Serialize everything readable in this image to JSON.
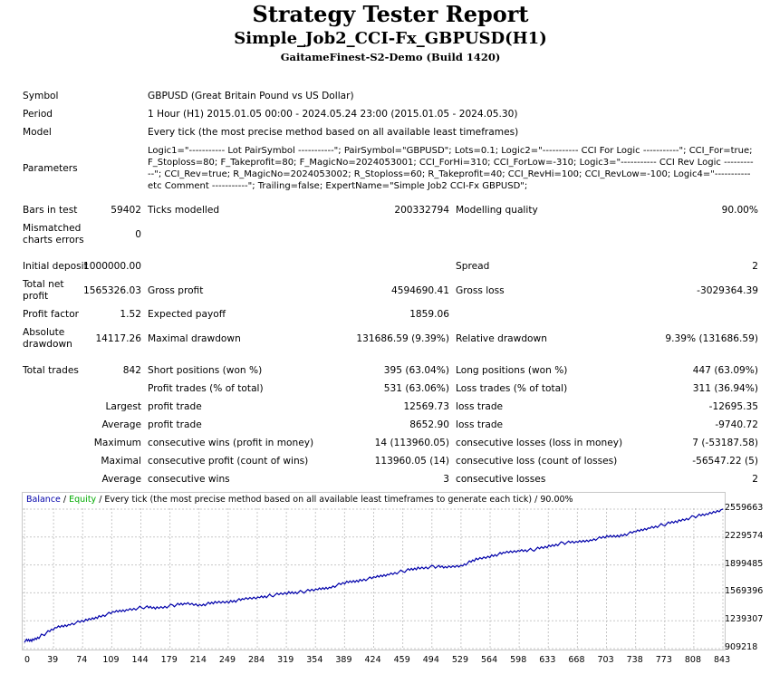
{
  "title": "Strategy Tester Report",
  "subtitle": "Simple_Job2_CCI-Fx_GBPUSD(H1)",
  "server": "GaitameFinest-S2-Demo (Build 1420)",
  "settings": {
    "symbol_label": "Symbol",
    "symbol": "GBPUSD (Great Britain Pound vs US Dollar)",
    "period_label": "Period",
    "period": "1 Hour (H1) 2015.01.05 00:00 - 2024.05.24 23:00 (2015.01.05 - 2024.05.30)",
    "model_label": "Model",
    "model": "Every tick (the most precise method based on all available least timeframes)",
    "parameters_label": "Parameters",
    "parameters": "Logic1=\"----------- Lot PairSymbol -----------\"; PairSymbol=\"GBPUSD\"; Lots=0.1; Logic2=\"----------- CCI For Logic -----------\"; CCI_For=true; F_Stoploss=80; F_Takeprofit=80; F_MagicNo=2024053001; CCI_ForHi=310; CCI_ForLow=-310; Logic3=\"----------- CCI Rev Logic -----------\"; CCI_Rev=true; R_MagicNo=2024053002; R_Stoploss=60; R_Takeprofit=40; CCI_RevHi=100; CCI_RevLow=-100; Logic4=\"----------- etc Comment -----------\"; Trailing=false; ExpertName=\"Simple Job2 CCI-Fx GBPUSD\";"
  },
  "stats": {
    "bars_label": "Bars in test",
    "bars": "59402",
    "ticks_label": "Ticks modelled",
    "ticks": "200332794",
    "quality_label": "Modelling quality",
    "quality": "90.00%",
    "mismatch_label": "Mismatched charts errors",
    "mismatch": "0",
    "deposit_label": "Initial deposit",
    "deposit": "1000000.00",
    "spread_label": "Spread",
    "spread": "2",
    "netprofit_label": "Total net profit",
    "netprofit": "1565326.03",
    "grossprofit_label": "Gross profit",
    "grossprofit": "4594690.41",
    "grossloss_label": "Gross loss",
    "grossloss": "-3029364.39",
    "pf_label": "Profit factor",
    "pf": "1.52",
    "payoff_label": "Expected payoff",
    "payoff": "1859.06",
    "absdd_label": "Absolute drawdown",
    "absdd": "14117.26",
    "maxdd_label": "Maximal drawdown",
    "maxdd": "131686.59 (9.39%)",
    "reldd_label": "Relative drawdown",
    "reldd": "9.39% (131686.59)",
    "trades_label": "Total trades",
    "trades": "842",
    "short_label": "Short positions (won %)",
    "short": "395 (63.04%)",
    "long_label": "Long positions (won %)",
    "long": "447 (63.09%)",
    "ptrades_label": "Profit trades (% of total)",
    "ptrades": "531 (63.06%)",
    "ltrades_label": "Loss trades (% of total)",
    "ltrades": "311 (36.94%)",
    "largest": "Largest",
    "average": "Average",
    "maximum": "Maximum",
    "maximal": "Maximal",
    "lpt_label": "profit trade",
    "lpt": "12569.73",
    "llt_label": "loss trade",
    "llt": "-12695.35",
    "apt_label": "profit trade",
    "apt": "8652.90",
    "alt_label": "loss trade",
    "alt": "-9740.72",
    "mcw_label": "consecutive wins (profit in money)",
    "mcw": "14 (113960.05)",
    "mcl_label": "consecutive losses (loss in money)",
    "mcl": "7 (-53187.58)",
    "mcp_label": "consecutive profit (count of wins)",
    "mcp": "113960.05 (14)",
    "mcll_label": "consecutive loss (count of losses)",
    "mcll": "-56547.22 (5)",
    "acw_label": "consecutive wins",
    "acw": "3",
    "acl_label": "consecutive losses",
    "acl": "2"
  },
  "chart_legend": {
    "balance": "Balance",
    "sep": " / ",
    "equity": "Equity",
    "rest": " / Every tick (the most precise method based on all available least timeframes to generate each tick) / 90.00%"
  },
  "colors": {
    "balance": "#0000aa",
    "equity": "#00aa00",
    "grid": "#c8c8c8"
  },
  "chart_data": {
    "type": "line",
    "x_ticks": [
      "0",
      "39",
      "74",
      "109",
      "144",
      "179",
      "214",
      "249",
      "284",
      "319",
      "354",
      "389",
      "424",
      "459",
      "494",
      "529",
      "564",
      "598",
      "633",
      "668",
      "703",
      "738",
      "773",
      "808",
      "843"
    ],
    "x_range": [
      0,
      843
    ],
    "y_ticks": [
      "2559663",
      "2229574",
      "1899485",
      "1569396",
      "1239307",
      "909218"
    ],
    "y_range": [
      909218,
      2559663
    ],
    "series": [
      {
        "name": "Balance",
        "x": [
          0,
          10,
          22,
          39,
          55,
          74,
          90,
          109,
          125,
          144,
          160,
          179,
          195,
          214,
          230,
          249,
          265,
          284,
          300,
          319,
          335,
          354,
          370,
          389,
          405,
          424,
          440,
          459,
          475,
          494,
          510,
          529,
          545,
          564,
          580,
          598,
          615,
          633,
          650,
          668,
          685,
          703,
          720,
          738,
          755,
          773,
          790,
          808,
          825,
          843
        ],
        "y": [
          1000000,
          1010000,
          1070000,
          1160000,
          1200000,
          1240000,
          1290000,
          1340000,
          1370000,
          1400000,
          1390000,
          1420000,
          1440000,
          1430000,
          1450000,
          1470000,
          1490000,
          1520000,
          1540000,
          1570000,
          1580000,
          1610000,
          1640000,
          1690000,
          1720000,
          1750000,
          1790000,
          1830000,
          1860000,
          1880000,
          1870000,
          1900000,
          1960000,
          2010000,
          2040000,
          2070000,
          2080000,
          2120000,
          2160000,
          2170000,
          2200000,
          2230000,
          2250000,
          2290000,
          2340000,
          2380000,
          2420000,
          2470000,
          2500000,
          2560000
        ]
      }
    ]
  }
}
